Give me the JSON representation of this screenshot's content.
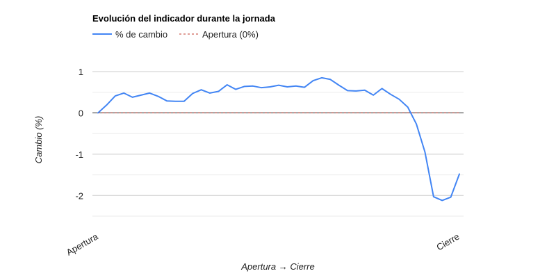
{
  "chart_data": {
    "type": "line",
    "title": "Evolución del indicador durante la jornada",
    "xlabel": "Apertura → Cierre",
    "ylabel": "Cambio (%)",
    "x_tick_labels": [
      "Apertura",
      "Cierre"
    ],
    "y_ticks": [
      1,
      0,
      -1,
      -2
    ],
    "y_tick_labels": [
      "1",
      "0",
      "-1",
      "-2"
    ],
    "ylim": [
      -2.5,
      1.0
    ],
    "grid": true,
    "legend_position": "top-left",
    "series": [
      {
        "name": "% de cambio",
        "color": "#4285f4",
        "values": [
          0.0,
          0.19,
          0.41,
          0.48,
          0.38,
          0.43,
          0.48,
          0.4,
          0.29,
          0.28,
          0.28,
          0.47,
          0.56,
          0.48,
          0.52,
          0.68,
          0.57,
          0.64,
          0.65,
          0.61,
          0.63,
          0.67,
          0.63,
          0.65,
          0.62,
          0.78,
          0.85,
          0.81,
          0.67,
          0.54,
          0.53,
          0.55,
          0.43,
          0.59,
          0.45,
          0.33,
          0.14,
          -0.27,
          -0.95,
          -2.03,
          -2.12,
          -2.04,
          -1.48
        ]
      },
      {
        "name": "Apertura (0%)",
        "color": "#c0392b",
        "style": "dashed",
        "values": [
          0,
          0
        ]
      }
    ]
  }
}
